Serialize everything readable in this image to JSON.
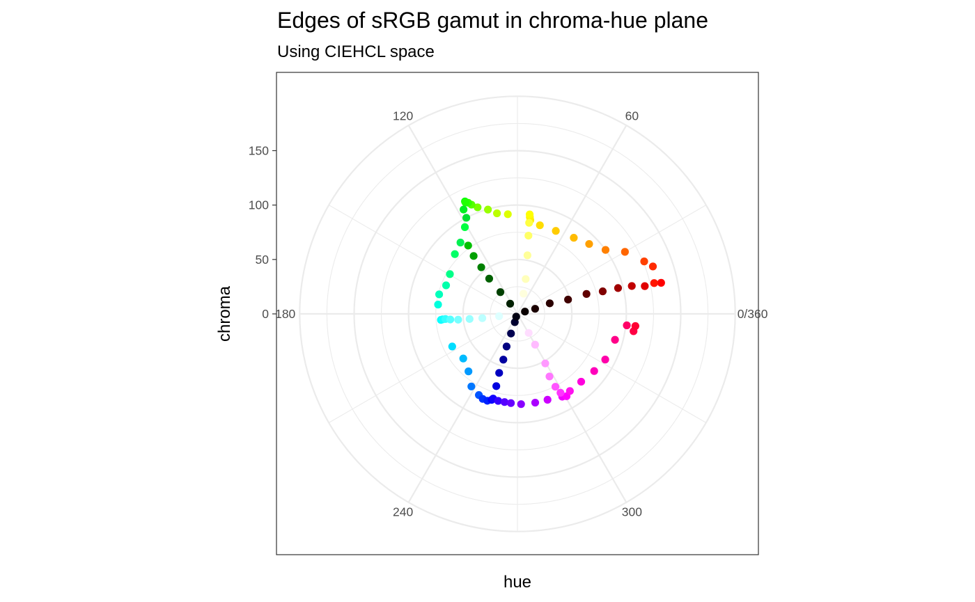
{
  "chart_data": {
    "type": "scatter",
    "coord": "polar",
    "title": "Edges of sRGB gamut in chroma-hue plane",
    "subtitle": "Using CIEHCL space",
    "xlabel": "hue",
    "ylabel": "chroma",
    "x_range": [
      0,
      360
    ],
    "y_range": [
      0,
      200
    ],
    "x_ticks": [
      0,
      60,
      120,
      180,
      240,
      300
    ],
    "x_tick_labels": [
      "0/360",
      "60",
      "120",
      "180",
      "240",
      "300"
    ],
    "y_ticks": [
      0,
      50,
      100,
      150
    ],
    "y_tick_labels": [
      "0",
      "50",
      "100",
      "150"
    ],
    "grid": true,
    "legend": "none",
    "points": [
      {
        "hue": 12.2,
        "chroma": 135.0,
        "color": "#FF0000"
      },
      {
        "hue": 12.7,
        "chroma": 128.7,
        "color": "#FF1500"
      },
      {
        "hue": 12.3,
        "chroma": 119.7,
        "color": "#E00000"
      },
      {
        "hue": 13.7,
        "chroma": 108.1,
        "color": "#C00000"
      },
      {
        "hue": 14.4,
        "chroma": 95.4,
        "color": "#A00000"
      },
      {
        "hue": 14.8,
        "chroma": 81.0,
        "color": "#800000"
      },
      {
        "hue": 16.1,
        "chroma": 66.0,
        "color": "#600000"
      },
      {
        "hue": 15.8,
        "chroma": 48.3,
        "color": "#400000"
      },
      {
        "hue": 18.1,
        "chroma": 31.2,
        "color": "#2A0000"
      },
      {
        "hue": 16.1,
        "chroma": 16.9,
        "color": "#1A0000"
      },
      {
        "hue": 17.1,
        "chroma": 7.2,
        "color": "#0A0000"
      },
      {
        "hue": 19.3,
        "chroma": 131.8,
        "color": "#FF2A00"
      },
      {
        "hue": 22.5,
        "chroma": 126.0,
        "color": "#FF4000"
      },
      {
        "hue": 30.0,
        "chroma": 114.0,
        "color": "#FF6600"
      },
      {
        "hue": 36.0,
        "chroma": 100.0,
        "color": "#FF8000"
      },
      {
        "hue": 44.3,
        "chroma": 92.0,
        "color": "#FFA000"
      },
      {
        "hue": 53.5,
        "chroma": 87.0,
        "color": "#FFBB00"
      },
      {
        "hue": 65.2,
        "chroma": 84.0,
        "color": "#FFCC00"
      },
      {
        "hue": 75.8,
        "chroma": 84.0,
        "color": "#FFDD00"
      },
      {
        "hue": 82.2,
        "chroma": 87.0,
        "color": "#FFEE00"
      },
      {
        "hue": 82.7,
        "chroma": 89.7,
        "color": "#FFF200"
      },
      {
        "hue": 83.0,
        "chroma": 92.1,
        "color": "#FFFF00"
      },
      {
        "hue": 82.7,
        "chroma": 84.4,
        "color": "#FFFF40"
      },
      {
        "hue": 82.0,
        "chroma": 72.6,
        "color": "#FFFF66"
      },
      {
        "hue": 80.3,
        "chroma": 54.6,
        "color": "#FFFF99"
      },
      {
        "hue": 76.7,
        "chroma": 32.9,
        "color": "#FFFFBB"
      },
      {
        "hue": 73.3,
        "chroma": 19.4,
        "color": "#FFFFDD"
      },
      {
        "hue": 95.5,
        "chroma": 92.0,
        "color": "#DDFF00"
      },
      {
        "hue": 101.5,
        "chroma": 94.3,
        "color": "#BBFF00"
      },
      {
        "hue": 105.8,
        "chroma": 99.6,
        "color": "#99FF00"
      },
      {
        "hue": 110.5,
        "chroma": 104.5,
        "color": "#77FF00"
      },
      {
        "hue": 112.8,
        "chroma": 108.9,
        "color": "#55FF00"
      },
      {
        "hue": 113.9,
        "chroma": 111.7,
        "color": "#33FF00"
      },
      {
        "hue": 115.0,
        "chroma": 114.0,
        "color": "#00FF00"
      },
      {
        "hue": 115.0,
        "chroma": 113.0,
        "color": "#22FF00"
      },
      {
        "hue": 117.3,
        "chroma": 107.9,
        "color": "#00F020"
      },
      {
        "hue": 118.0,
        "chroma": 100.0,
        "color": "#00E030"
      },
      {
        "hue": 121.2,
        "chroma": 93.2,
        "color": "#00FF40"
      },
      {
        "hue": 128.6,
        "chroma": 83.9,
        "color": "#00F050"
      },
      {
        "hue": 136.3,
        "chroma": 79.5,
        "color": "#00FF66"
      },
      {
        "hue": 149.5,
        "chroma": 72.0,
        "color": "#00FF88"
      },
      {
        "hue": 158.2,
        "chroma": 70.6,
        "color": "#00FFAA"
      },
      {
        "hue": 166.0,
        "chroma": 74.1,
        "color": "#00FFBB"
      },
      {
        "hue": 173.3,
        "chroma": 73.4,
        "color": "#00FFDD"
      },
      {
        "hue": 184.5,
        "chroma": 70.5,
        "color": "#00FFFF"
      },
      {
        "hue": 184.2,
        "chroma": 68.9,
        "color": "#11FFFF"
      },
      {
        "hue": 184.1,
        "chroma": 66.3,
        "color": "#33FFFF"
      },
      {
        "hue": 184.8,
        "chroma": 61.9,
        "color": "#55FFFF"
      },
      {
        "hue": 185.6,
        "chroma": 54.7,
        "color": "#77FFFF"
      },
      {
        "hue": 186.1,
        "chroma": 44.2,
        "color": "#99FFFF"
      },
      {
        "hue": 186.9,
        "chroma": 32.5,
        "color": "#BBFFFF"
      },
      {
        "hue": 187.3,
        "chroma": 17.0,
        "color": "#DDFFFF"
      },
      {
        "hue": 125.8,
        "chroma": 77.4,
        "color": "#00C000"
      },
      {
        "hue": 127.1,
        "chroma": 66.7,
        "color": "#00A000"
      },
      {
        "hue": 127.8,
        "chroma": 54.2,
        "color": "#008000"
      },
      {
        "hue": 128.7,
        "chroma": 41.5,
        "color": "#006000"
      },
      {
        "hue": 128.1,
        "chroma": 25.4,
        "color": "#004000"
      },
      {
        "hue": 125.6,
        "chroma": 11.5,
        "color": "#002000"
      },
      {
        "hue": 206.6,
        "chroma": 67.0,
        "color": "#00DDFF"
      },
      {
        "hue": 219.5,
        "chroma": 64.5,
        "color": "#00BBFF"
      },
      {
        "hue": 229.6,
        "chroma": 69.4,
        "color": "#0099FF"
      },
      {
        "hue": 237.6,
        "chroma": 79.0,
        "color": "#0077FF"
      },
      {
        "hue": 244.6,
        "chroma": 82.6,
        "color": "#0055FF"
      },
      {
        "hue": 247.8,
        "chroma": 84.4,
        "color": "#0033FF"
      },
      {
        "hue": 250.9,
        "chroma": 84.5,
        "color": "#0022FF"
      },
      {
        "hue": 253.3,
        "chroma": 82.5,
        "color": "#0000FF"
      },
      {
        "hue": 254.0,
        "chroma": 81.0,
        "color": "#1100FF"
      },
      {
        "hue": 253.7,
        "chroma": 69.2,
        "color": "#0000E0"
      },
      {
        "hue": 252.8,
        "chroma": 56.8,
        "color": "#0000C0"
      },
      {
        "hue": 252.9,
        "chroma": 44.0,
        "color": "#0000A0"
      },
      {
        "hue": 251.6,
        "chroma": 31.6,
        "color": "#000080"
      },
      {
        "hue": 251.8,
        "chroma": 19.0,
        "color": "#000050"
      },
      {
        "hue": 252.3,
        "chroma": 8.0,
        "color": "#000030"
      },
      {
        "hue": 246.0,
        "chroma": 2.8,
        "color": "#000011"
      },
      {
        "hue": 257.5,
        "chroma": 81.9,
        "color": "#3300FF"
      },
      {
        "hue": 261.7,
        "chroma": 81.9,
        "color": "#5500FF"
      },
      {
        "hue": 265.8,
        "chroma": 82.2,
        "color": "#6600FF"
      },
      {
        "hue": 272.3,
        "chroma": 83.0,
        "color": "#8800FF"
      },
      {
        "hue": 281.3,
        "chroma": 83.2,
        "color": "#AA00FF"
      },
      {
        "hue": 289.3,
        "chroma": 83.6,
        "color": "#CC00FF"
      },
      {
        "hue": 298.4,
        "chroma": 86.5,
        "color": "#EE00FF"
      },
      {
        "hue": 300.8,
        "chroma": 88.1,
        "color": "#FF00FF"
      },
      {
        "hue": 304.2,
        "chroma": 85.7,
        "color": "#FF11EE"
      },
      {
        "hue": 313.2,
        "chroma": 85.5,
        "color": "#FF00DD"
      },
      {
        "hue": 323.3,
        "chroma": 87.9,
        "color": "#FF00BB"
      },
      {
        "hue": 332.5,
        "chroma": 90.9,
        "color": "#FF00AA"
      },
      {
        "hue": 345.1,
        "chroma": 92.7,
        "color": "#FF0088"
      },
      {
        "hue": 354.0,
        "chroma": 101.0,
        "color": "#FF0066"
      },
      {
        "hue": 351.5,
        "chroma": 107.8,
        "color": "#FF0044"
      },
      {
        "hue": 354.1,
        "chroma": 108.9,
        "color": "#FF0033"
      },
      {
        "hue": 298.6,
        "chroma": 82.6,
        "color": "#FF33FF"
      },
      {
        "hue": 297.5,
        "chroma": 75.5,
        "color": "#FF55FF"
      },
      {
        "hue": 297.1,
        "chroma": 64.6,
        "color": "#FF77FF"
      },
      {
        "hue": 299.3,
        "chroma": 52.2,
        "color": "#FF99FF"
      },
      {
        "hue": 299.8,
        "chroma": 32.6,
        "color": "#FFBBFF"
      },
      {
        "hue": 300.6,
        "chroma": 20.3,
        "color": "#FFDDFF"
      }
    ]
  }
}
